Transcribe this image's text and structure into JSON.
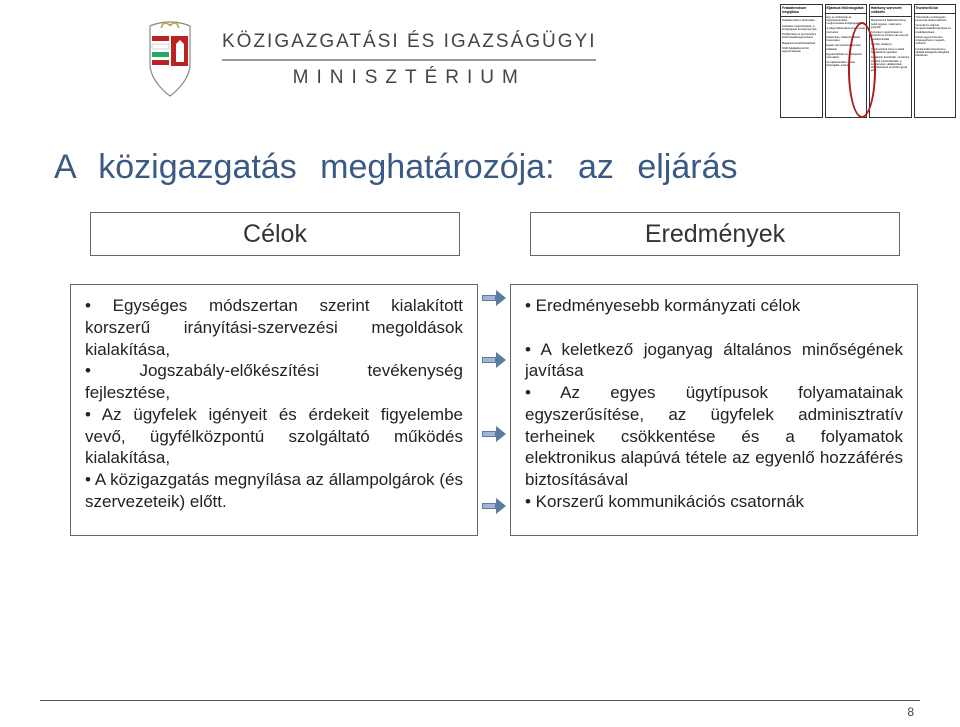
{
  "header": {
    "ministry_line1": "KÖZIGAZGATÁSI ÉS IGAZSÁGÜGYI",
    "ministry_line2": "MINISZTÉRIUM"
  },
  "page_title": "A közigazgatás meghatározója: az eljárás",
  "column_headers": {
    "left": "Célok",
    "right": "Eredmények"
  },
  "left_body": "• Egységes módszertan szerint kialakított korszerű irányítási-szervezési megoldások kialakítása,\n• Jogszabály-előkészítési tevékenység fejlesztése,\n• Az ügyfelek igényeit és érdekeit figyelembe vevő, ügyfélközpontú szolgáltató működés kialakítása,\n• A közigazgatás megnyílása az állampolgárok (és szervezeteik) előtt.",
  "right_body": "• Eredményesebb kormányzati célok\n\n• A keletkező joganyag általános minőségének javítása\n• Az egyes ügytípusok folyamatainak egyszerűsítése, az ügyfelek adminisztratív terheinek csökkentése és a folyamatok elektronikus alapúvá tétele az egyenlő hozzáférés biztosításával\n• Korszerű kommunikációs csatornák",
  "arrows": {
    "count": 4,
    "top_positions": [
      290,
      352,
      426,
      498
    ]
  },
  "strategy_table": {
    "columns": [
      {
        "head": "Feladatrendszer megújítása",
        "items": [
          "Feladatrendszer újraosztása",
          "Feladatok megszüntetése, a közigazgatás szerepének újra-",
          "Profiltisztítás és szervezethez kötött-feladatmegszüntetés",
          "Magánszervezethezkiadható",
          "NGM feladatokat érintő egyszerűsítések"
        ]
      },
      {
        "head": "Eljárások felülvizsgálata",
        "items": [
          "Egy új módszertan és folyamatszemlélet meghonosítása közigazgatási",
          "A jellegi előkészítési tevékenység szervezeti",
          "Fejlesztése, hatásvizsgálatok bevezetése",
          "Egyéb szervezetszabályozási feltételek",
          "Együttműködés és előterjesztő szervekkel",
          "Az eljárásrendek vannak felvizsgálat, esélyek"
        ]
      },
      {
        "head": "Hatékony szervezeti működés",
        "items": [
          "Minisztériumi háttérintézményi, belső ügyeket, szakmai és irányítók",
          "Kormányi megszüntetett és központi és szintek más szervek e-elektronizálás",
          "Hozzák, hatékony",
          "A szervezetek méret a valódi feladatokhoz igazítása",
          "Kialakított, koordináló, monitoring az adott infrastrukturális, a kormányzati, vállalkozások, időszakonkénti és körök egyedi jelek"
        ]
      },
      {
        "head": "Tisztviselői kar",
        "items": [
          "Tisztviselők munkavégzés kereteinek tételes definíció",
          "Generali és szakmai kompetenciaköltő képzések és továbbképzések",
          "Kihasz-egyeni bérezési, öngengedmény-megtartó eszközei",
          "Funkcionális követelmény-taktikák kidolgozás elfogadva kiküldezés"
        ]
      }
    ]
  },
  "page_number": "8",
  "colors": {
    "title": "#3a5a84",
    "border": "#666666",
    "text": "#222222",
    "arrow_fill": "#9fb7d4",
    "arrow_border": "#5a7aa0",
    "ellipse": "#b01a1a"
  }
}
